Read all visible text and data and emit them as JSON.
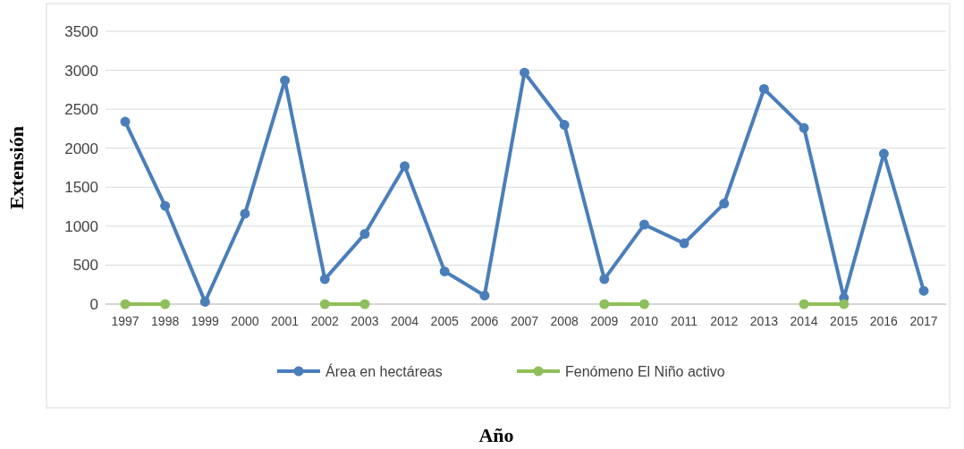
{
  "chart_data": {
    "type": "line",
    "xlabel": "Año",
    "ylabel": "Extensión",
    "categories": [
      "1997",
      "1998",
      "1999",
      "2000",
      "2001",
      "2002",
      "2003",
      "2004",
      "2005",
      "2006",
      "2007",
      "2008",
      "2009",
      "2010",
      "2011",
      "2012",
      "2013",
      "2014",
      "2015",
      "2016",
      "2017"
    ],
    "series": [
      {
        "name": "Área en hectáreas",
        "color": "#4a7ebb",
        "values": [
          2340,
          1260,
          30,
          1160,
          2870,
          320,
          900,
          1770,
          420,
          110,
          2970,
          2300,
          320,
          1020,
          780,
          1290,
          2760,
          2260,
          80,
          1930,
          170
        ]
      },
      {
        "name": "Fenómeno El Niño activo",
        "color": "#8fbf5a",
        "values": [
          0,
          0,
          null,
          null,
          null,
          0,
          0,
          null,
          null,
          null,
          null,
          null,
          0,
          0,
          null,
          null,
          null,
          0,
          0,
          null,
          null
        ]
      }
    ],
    "ylim": [
      0,
      3500
    ],
    "yticks": [
      0,
      500,
      1000,
      1500,
      2000,
      2500,
      3000,
      3500
    ],
    "grid": "y",
    "legend": "bottom",
    "marker": "circle",
    "line_style": "solid"
  }
}
